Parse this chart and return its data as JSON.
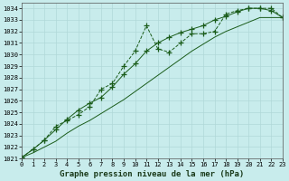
{
  "title": "Graphe pression niveau de la mer (hPa)",
  "bg_color": "#c8ecec",
  "grid_color": "#b0d8d8",
  "line_color": "#1a5c1a",
  "xlim": [
    0,
    23
  ],
  "ylim": [
    1021,
    1034.5
  ],
  "yticks": [
    1021,
    1022,
    1023,
    1024,
    1025,
    1026,
    1027,
    1028,
    1029,
    1030,
    1031,
    1032,
    1033,
    1034
  ],
  "xticks": [
    0,
    1,
    2,
    3,
    4,
    5,
    6,
    7,
    8,
    9,
    10,
    11,
    12,
    13,
    14,
    15,
    16,
    17,
    18,
    19,
    20,
    21,
    22,
    23
  ],
  "series1_x": [
    0,
    1,
    2,
    3,
    4,
    5,
    6,
    7,
    8,
    9,
    10,
    11,
    12,
    13,
    14,
    15,
    16,
    17,
    18,
    19,
    20,
    21,
    22,
    23
  ],
  "series1_y": [
    1021.1,
    1021.8,
    1022.6,
    1023.8,
    1024.3,
    1024.8,
    1025.5,
    1027.0,
    1027.5,
    1029.0,
    1030.3,
    1032.5,
    1030.5,
    1030.2,
    1031.0,
    1031.8,
    1031.8,
    1032.0,
    1033.5,
    1033.8,
    1034.0,
    1034.0,
    1034.0,
    1033.2
  ],
  "series2_x": [
    0,
    1,
    2,
    3,
    4,
    5,
    6,
    7,
    8,
    9,
    10,
    11,
    12,
    13,
    14,
    15,
    16,
    17,
    18,
    19,
    20,
    21,
    22,
    23
  ],
  "series2_y": [
    1021.1,
    1021.5,
    1022.0,
    1022.5,
    1023.2,
    1023.8,
    1024.3,
    1024.9,
    1025.5,
    1026.1,
    1026.8,
    1027.5,
    1028.2,
    1028.9,
    1029.6,
    1030.3,
    1030.9,
    1031.5,
    1032.0,
    1032.4,
    1032.8,
    1033.2,
    1033.2,
    1033.2
  ],
  "series3_x": [
    0,
    1,
    2,
    3,
    4,
    5,
    6,
    7,
    8,
    9,
    10,
    11,
    12,
    13,
    14,
    15,
    16,
    17,
    18,
    19,
    20,
    21,
    22,
    23
  ],
  "series3_y": [
    1021.1,
    1021.8,
    1022.6,
    1023.5,
    1024.4,
    1025.2,
    1025.8,
    1026.3,
    1027.2,
    1028.3,
    1029.2,
    1030.3,
    1031.0,
    1031.5,
    1031.9,
    1032.2,
    1032.5,
    1033.0,
    1033.3,
    1033.7,
    1034.0,
    1034.0,
    1033.8,
    1033.2
  ],
  "title_fontsize": 6.5,
  "tick_fontsize": 5.0
}
